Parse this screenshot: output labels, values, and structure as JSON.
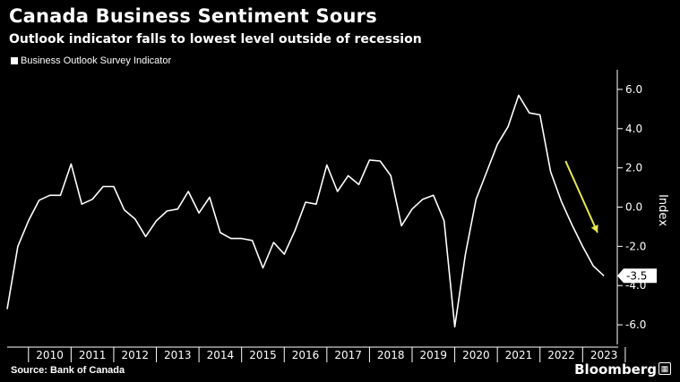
{
  "header": {
    "title": "Canada Business Sentiment Sours",
    "subtitle": "Outlook indicator falls to lowest level outside of recession"
  },
  "legend": {
    "series_label": "Business Outlook Survey Indicator"
  },
  "footer": {
    "source": "Source: Bank of Canada",
    "brand": "Bloomberg"
  },
  "colors": {
    "background": "#000000",
    "line": "#ffffff",
    "arrow": "#e8e84a"
  },
  "chart_data": {
    "type": "line",
    "ylabel": "Index",
    "ylim": [
      -7.0,
      7.0
    ],
    "y_ticks": [
      "6.0",
      "4.0",
      "2.0",
      "0.0",
      "-2.0",
      "-4.0",
      "-6.0"
    ],
    "y_tick_values": [
      6,
      4,
      2,
      0,
      -2,
      -4,
      -6
    ],
    "x_ticks": [
      "2010",
      "2011",
      "2012",
      "2013",
      "2014",
      "2015",
      "2016",
      "2017",
      "2018",
      "2019",
      "2020",
      "2021",
      "2022",
      "2023"
    ],
    "xlim": [
      2009.5,
      2023.75
    ],
    "grid": false,
    "legend_position": "top-left",
    "last_value_label": "-3.5",
    "annotation": "yellow arrow pointing down near end of series",
    "series": [
      {
        "name": "Business Outlook Survey Indicator",
        "x": [
          2009.5,
          2009.75,
          2010.0,
          2010.25,
          2010.5,
          2010.75,
          2011.0,
          2011.25,
          2011.5,
          2011.75,
          2012.0,
          2012.25,
          2012.5,
          2012.75,
          2013.0,
          2013.25,
          2013.5,
          2013.75,
          2014.0,
          2014.25,
          2014.5,
          2014.75,
          2015.0,
          2015.25,
          2015.5,
          2015.75,
          2016.0,
          2016.25,
          2016.5,
          2016.75,
          2017.0,
          2017.25,
          2017.5,
          2017.75,
          2018.0,
          2018.25,
          2018.5,
          2018.75,
          2019.0,
          2019.25,
          2019.5,
          2019.75,
          2020.0,
          2020.25,
          2020.5,
          2020.75,
          2021.0,
          2021.25,
          2021.5,
          2021.75,
          2022.0,
          2022.25,
          2022.5,
          2022.75,
          2023.0,
          2023.25,
          2023.5
        ],
        "values": [
          -5.2,
          -2.0,
          -0.7,
          0.35,
          0.6,
          0.6,
          2.2,
          0.15,
          0.4,
          1.05,
          1.05,
          -0.15,
          -0.6,
          -1.5,
          -0.7,
          -0.2,
          -0.1,
          0.8,
          -0.3,
          0.5,
          -1.3,
          -1.6,
          -1.6,
          -1.7,
          -3.1,
          -1.8,
          -2.4,
          -1.2,
          0.25,
          0.15,
          2.15,
          0.8,
          1.6,
          1.15,
          2.4,
          2.35,
          1.6,
          -0.95,
          -0.1,
          0.4,
          0.6,
          -0.7,
          -6.1,
          -2.4,
          0.4,
          1.8,
          3.2,
          4.1,
          5.7,
          4.8,
          4.7,
          1.8,
          0.3,
          -0.9,
          -2.0,
          -3.0,
          -3.5
        ]
      }
    ]
  }
}
